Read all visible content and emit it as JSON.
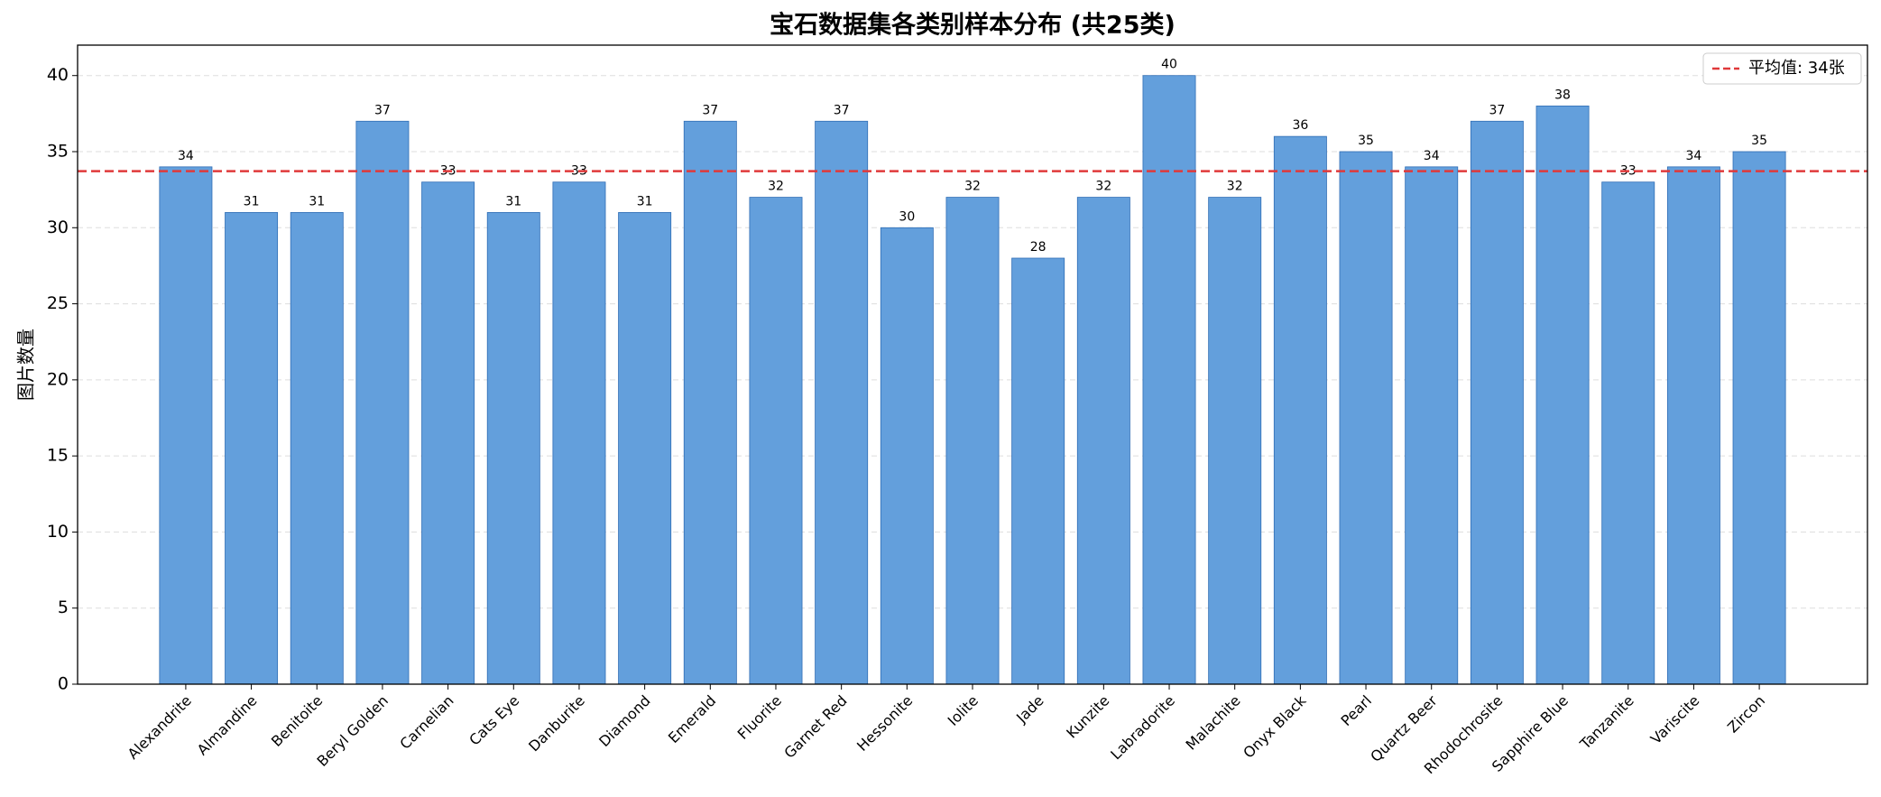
{
  "chart_data": {
    "type": "bar",
    "title": "宝石数据集各类别样本分布 (共25类)",
    "y_label": "图片数量",
    "categories": [
      "Alexandrite",
      "Almandine",
      "Benitoite",
      "Beryl Golden",
      "Carnelian",
      "Cats Eye",
      "Danburite",
      "Diamond",
      "Emerald",
      "Fluorite",
      "Garnet Red",
      "Hessonite",
      "Iolite",
      "Jade",
      "Kunzite",
      "Labradorite",
      "Malachite",
      "Onyx Black",
      "Pearl",
      "Quartz Beer",
      "Rhodochrosite",
      "Sapphire Blue",
      "Tanzanite",
      "Variscite",
      "Zircon"
    ],
    "values": [
      34,
      31,
      31,
      37,
      33,
      31,
      33,
      31,
      37,
      32,
      37,
      30,
      32,
      28,
      32,
      40,
      32,
      36,
      35,
      34,
      37,
      38,
      33,
      34,
      35
    ],
    "color": "#639fdc",
    "edge_color": "#2f6db5",
    "ylim": [
      0,
      42
    ],
    "yticks": [
      0,
      5,
      10,
      15,
      20,
      25,
      30,
      35,
      40
    ],
    "grid": true,
    "mean_line": {
      "value": 33.72,
      "label": "平均值: 34张",
      "color": "#e0393a"
    },
    "legend": "upper right"
  }
}
